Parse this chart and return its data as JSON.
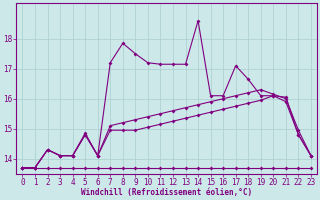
{
  "xlabel": "Windchill (Refroidissement éolien,°C)",
  "bg_color": "#cce8e8",
  "line_color": "#800080",
  "xlim": [
    -0.5,
    23.5
  ],
  "ylim": [
    13.5,
    19.2
  ],
  "yticks": [
    14,
    15,
    16,
    17,
    18
  ],
  "xticks": [
    0,
    1,
    2,
    3,
    4,
    5,
    6,
    7,
    8,
    9,
    10,
    11,
    12,
    13,
    14,
    15,
    16,
    17,
    18,
    19,
    20,
    21,
    22,
    23
  ],
  "series1_x": [
    0,
    1,
    2,
    3,
    4,
    5,
    6,
    7,
    8,
    9,
    10,
    11,
    12,
    13,
    14,
    15,
    16,
    17,
    18,
    19,
    20,
    21,
    22,
    23
  ],
  "series1_y": [
    13.7,
    13.7,
    14.3,
    14.1,
    14.1,
    14.8,
    14.1,
    17.2,
    17.85,
    17.5,
    17.2,
    17.15,
    17.15,
    17.15,
    18.6,
    16.1,
    16.1,
    17.1,
    16.65,
    16.1,
    16.1,
    15.9,
    14.8,
    14.1
  ],
  "series2_x": [
    0,
    1,
    2,
    3,
    4,
    5,
    6,
    7,
    8,
    9,
    10,
    11,
    12,
    13,
    14,
    15,
    16,
    17,
    18,
    19,
    20,
    21,
    22,
    23
  ],
  "series2_y": [
    13.7,
    13.7,
    13.7,
    13.7,
    13.7,
    13.7,
    13.7,
    13.7,
    13.7,
    13.7,
    13.7,
    13.7,
    13.7,
    13.7,
    13.7,
    13.7,
    13.7,
    13.7,
    13.7,
    13.7,
    13.7,
    13.7,
    13.7,
    13.7
  ],
  "series3_x": [
    0,
    1,
    2,
    3,
    4,
    5,
    6,
    7,
    8,
    9,
    10,
    11,
    12,
    13,
    14,
    15,
    16,
    17,
    18,
    19,
    20,
    21,
    22,
    23
  ],
  "series3_y": [
    13.7,
    13.7,
    14.3,
    14.1,
    14.1,
    14.8,
    14.1,
    14.95,
    14.95,
    14.95,
    15.05,
    15.15,
    15.25,
    15.35,
    15.45,
    15.55,
    15.65,
    15.75,
    15.85,
    15.95,
    16.1,
    16.05,
    14.8,
    14.1
  ],
  "series4_x": [
    0,
    1,
    2,
    3,
    4,
    5,
    6,
    7,
    8,
    9,
    10,
    11,
    12,
    13,
    14,
    15,
    16,
    17,
    18,
    19,
    20,
    21,
    22,
    23
  ],
  "series4_y": [
    13.7,
    13.7,
    14.3,
    14.1,
    14.1,
    14.85,
    14.1,
    15.1,
    15.2,
    15.3,
    15.4,
    15.5,
    15.6,
    15.7,
    15.8,
    15.9,
    16.0,
    16.1,
    16.2,
    16.3,
    16.15,
    16.0,
    14.95,
    14.1
  ],
  "marker": "D",
  "marker_size": 2,
  "linewidth": 0.8,
  "grid_color": "#aacece",
  "tick_fontsize": 5.5,
  "xlabel_fontsize": 5.5
}
